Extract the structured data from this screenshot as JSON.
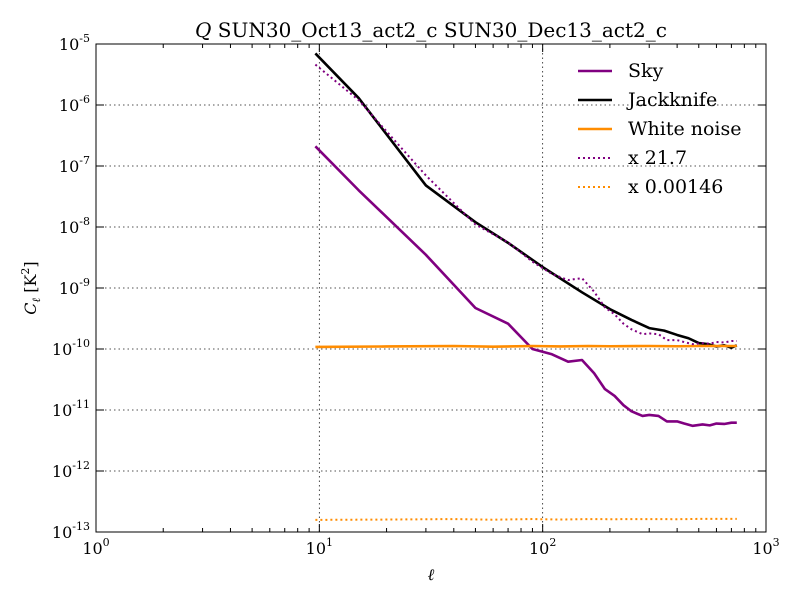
{
  "chart_data": {
    "type": "line",
    "title": "Q SUN30_Oct13_act2_c SUN30_Dec13_act2_c",
    "title_italic_prefix": "Q",
    "title_rest": " SUN30_Oct13_act2_c SUN30_Dec13_act2_c",
    "xlabel": "ℓ",
    "ylabel": "C_ℓ [K²]",
    "ylabel_main": "C",
    "ylabel_sub": "ℓ",
    "ylabel_unit": " [K",
    "ylabel_unit_sup": "2",
    "ylabel_unit_close": "]",
    "x_scale": "log",
    "y_scale": "log",
    "xlim": [
      1,
      1000
    ],
    "ylim": [
      1e-13,
      1e-05
    ],
    "grid": true,
    "legend_position": "top-right",
    "x_ticks": [
      {
        "base": "10",
        "exp": "0",
        "value": 1
      },
      {
        "base": "10",
        "exp": "1",
        "value": 10
      },
      {
        "base": "10",
        "exp": "2",
        "value": 100
      },
      {
        "base": "10",
        "exp": "3",
        "value": 1000
      }
    ],
    "y_ticks": [
      {
        "base": "10",
        "exp": "-13",
        "value": 1e-13
      },
      {
        "base": "10",
        "exp": "-12",
        "value": 1e-12
      },
      {
        "base": "10",
        "exp": "-11",
        "value": 1e-11
      },
      {
        "base": "10",
        "exp": "-10",
        "value": 1e-10
      },
      {
        "base": "10",
        "exp": "-9",
        "value": 1e-09
      },
      {
        "base": "10",
        "exp": "-8",
        "value": 1e-08
      },
      {
        "base": "10",
        "exp": "-7",
        "value": 1e-07
      },
      {
        "base": "10",
        "exp": "-6",
        "value": 1e-06
      },
      {
        "base": "10",
        "exp": "-5",
        "value": 1e-05
      }
    ],
    "series": [
      {
        "name": "Sky",
        "color": "#800080",
        "style": "solid",
        "points": [
          [
            9.6,
            2.1e-07
          ],
          [
            15,
            4e-08
          ],
          [
            30,
            3.5e-09
          ],
          [
            50,
            4.7e-10
          ],
          [
            70,
            2.6e-10
          ],
          [
            90,
            1e-10
          ],
          [
            110,
            8.2e-11
          ],
          [
            130,
            6.2e-11
          ],
          [
            150,
            6.6e-11
          ],
          [
            170,
            4e-11
          ],
          [
            190,
            2.2e-11
          ],
          [
            210,
            1.7e-11
          ],
          [
            230,
            1.2e-11
          ],
          [
            250,
            9.5e-12
          ],
          [
            280,
            8e-12
          ],
          [
            300,
            8.3e-12
          ],
          [
            330,
            8e-12
          ],
          [
            360,
            6.5e-12
          ],
          [
            400,
            6.5e-12
          ],
          [
            430,
            6e-12
          ],
          [
            470,
            5.5e-12
          ],
          [
            520,
            5.8e-12
          ],
          [
            560,
            5.6e-12
          ],
          [
            600,
            6e-12
          ],
          [
            650,
            5.9e-12
          ],
          [
            700,
            6.2e-12
          ],
          [
            740,
            6.2e-12
          ]
        ]
      },
      {
        "name": "Jackknife",
        "color": "#000000",
        "style": "solid",
        "points": [
          [
            9.6,
            7e-06
          ],
          [
            15,
            1.3e-06
          ],
          [
            30,
            4.8e-08
          ],
          [
            50,
            1.2e-08
          ],
          [
            70,
            5.5e-09
          ],
          [
            100,
            2.2e-09
          ],
          [
            150,
            8.5e-10
          ],
          [
            200,
            4.5e-10
          ],
          [
            250,
            3e-10
          ],
          [
            300,
            2.2e-10
          ],
          [
            350,
            2e-10
          ],
          [
            400,
            1.7e-10
          ],
          [
            450,
            1.5e-10
          ],
          [
            500,
            1.25e-10
          ],
          [
            550,
            1.2e-10
          ],
          [
            600,
            1.1e-10
          ],
          [
            650,
            1.15e-10
          ],
          [
            700,
            1.05e-10
          ],
          [
            740,
            1.15e-10
          ]
        ]
      },
      {
        "name": "White noise",
        "color": "#ff8c00",
        "style": "solid",
        "points": [
          [
            9.6,
            1.08e-10
          ],
          [
            20,
            1.1e-10
          ],
          [
            40,
            1.12e-10
          ],
          [
            60,
            1.09e-10
          ],
          [
            90,
            1.12e-10
          ],
          [
            120,
            1.1e-10
          ],
          [
            160,
            1.12e-10
          ],
          [
            200,
            1.11e-10
          ],
          [
            300,
            1.12e-10
          ],
          [
            400,
            1.11e-10
          ],
          [
            500,
            1.12e-10
          ],
          [
            600,
            1.12e-10
          ],
          [
            740,
            1.12e-10
          ]
        ]
      },
      {
        "name": "x 21.7",
        "color": "#800080",
        "style": "dotted",
        "points": [
          [
            9.6,
            4.6e-06
          ],
          [
            15,
            1.2e-06
          ],
          [
            30,
            7e-08
          ],
          [
            50,
            1.1e-08
          ],
          [
            70,
            5.6e-09
          ],
          [
            90,
            2.7e-09
          ],
          [
            110,
            1.7e-09
          ],
          [
            130,
            1.35e-09
          ],
          [
            150,
            1.45e-09
          ],
          [
            170,
            8.7e-10
          ],
          [
            190,
            4.8e-10
          ],
          [
            210,
            3.7e-10
          ],
          [
            230,
            2.6e-10
          ],
          [
            250,
            2.1e-10
          ],
          [
            280,
            1.75e-10
          ],
          [
            300,
            1.8e-10
          ],
          [
            330,
            1.75e-10
          ],
          [
            360,
            1.4e-10
          ],
          [
            400,
            1.4e-10
          ],
          [
            430,
            1.3e-10
          ],
          [
            470,
            1.2e-10
          ],
          [
            520,
            1.25e-10
          ],
          [
            560,
            1.22e-10
          ],
          [
            600,
            1.3e-10
          ],
          [
            650,
            1.28e-10
          ],
          [
            700,
            1.35e-10
          ],
          [
            740,
            1.35e-10
          ]
        ]
      },
      {
        "name": "x 0.00146",
        "color": "#ff8c00",
        "style": "dotted",
        "points": [
          [
            9.6,
            1.58e-13
          ],
          [
            20,
            1.6e-13
          ],
          [
            40,
            1.63e-13
          ],
          [
            60,
            1.59e-13
          ],
          [
            90,
            1.63e-13
          ],
          [
            120,
            1.6e-13
          ],
          [
            160,
            1.63e-13
          ],
          [
            200,
            1.62e-13
          ],
          [
            300,
            1.63e-13
          ],
          [
            400,
            1.62e-13
          ],
          [
            500,
            1.64e-13
          ],
          [
            600,
            1.64e-13
          ],
          [
            740,
            1.64e-13
          ]
        ]
      }
    ]
  }
}
